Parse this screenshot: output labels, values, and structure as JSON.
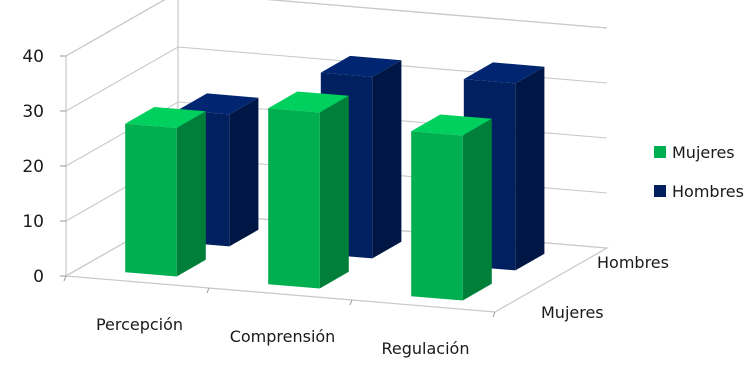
{
  "chart_data": {
    "type": "bar",
    "style": "3d-clustered-depth",
    "categories": [
      "Percepción",
      "Comprensión",
      "Regulación"
    ],
    "series": [
      {
        "name": "Mujeres",
        "values": [
          27,
          32,
          30
        ],
        "color": "#00b050"
      },
      {
        "name": "Hombres",
        "values": [
          24,
          33,
          34
        ],
        "color": "#002060"
      }
    ],
    "depth_labels": [
      "Hombres",
      "Mujeres"
    ],
    "yticks": [
      "0",
      "10",
      "20",
      "30",
      "40"
    ],
    "ylim": [
      0,
      40
    ],
    "title": "",
    "xlabel": "",
    "ylabel": "",
    "grid": true,
    "legend": "right"
  }
}
